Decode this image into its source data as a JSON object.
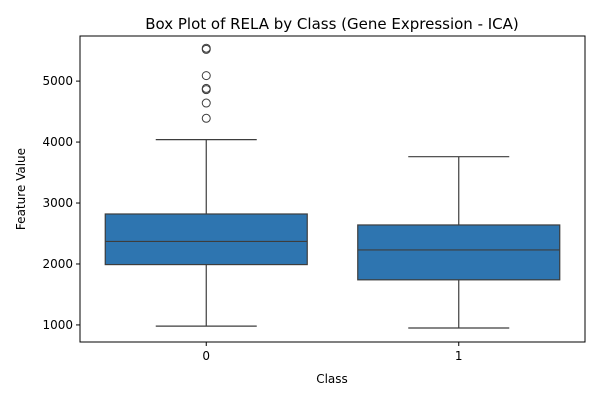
{
  "chart_data": {
    "type": "box",
    "title": "Box Plot of RELA by Class (Gene Expression - ICA)",
    "xlabel": "Class",
    "ylabel": "Feature Value",
    "categories": [
      "0",
      "1"
    ],
    "ylim": [
      720,
      5740
    ],
    "yticks": [
      1000,
      2000,
      3000,
      4000,
      5000
    ],
    "grid": false,
    "box_color": "#2e75b0",
    "line_color": "#3d3d3d",
    "boxes": [
      {
        "category": "0",
        "whisker_low": 980,
        "q1": 1990,
        "median": 2370,
        "q3": 2820,
        "whisker_high": 4040,
        "outliers": [
          4390,
          4640,
          4860,
          4880,
          5090,
          5520,
          5540
        ]
      },
      {
        "category": "1",
        "whisker_low": 950,
        "q1": 1740,
        "median": 2230,
        "q3": 2640,
        "whisker_high": 3760,
        "outliers": []
      }
    ]
  }
}
